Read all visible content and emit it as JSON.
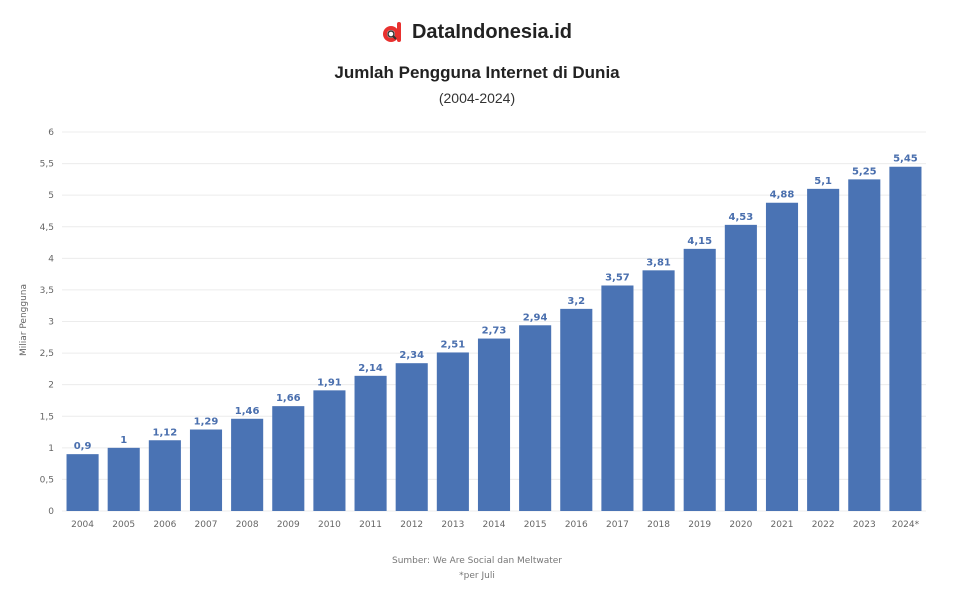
{
  "brand": {
    "name": "DataIndonesia.id",
    "logo_icon": "dataindonesia-logo-icon",
    "logo_color": "#e8312f"
  },
  "colors": {
    "bar": "#4a73b4",
    "data_label": "#4a6fae",
    "grid": "#ececec"
  },
  "chart_data": {
    "type": "bar",
    "title": "Jumlah Pengguna Internet di Dunia",
    "subtitle": "(2004-2024)",
    "ylabel": "Miliar Pengguna",
    "xlabel": "",
    "ylim": [
      0,
      6
    ],
    "yticks": [
      "0",
      "0,5",
      "1",
      "1,5",
      "2",
      "2,5",
      "3",
      "3,5",
      "4",
      "4,5",
      "5",
      "5,5",
      "6"
    ],
    "grid": true,
    "categories": [
      "2004",
      "2005",
      "2006",
      "2007",
      "2008",
      "2009",
      "2010",
      "2011",
      "2012",
      "2013",
      "2014",
      "2015",
      "2016",
      "2017",
      "2018",
      "2019",
      "2020",
      "2021",
      "2022",
      "2023",
      "2024*"
    ],
    "values": [
      0.9,
      1,
      1.12,
      1.29,
      1.46,
      1.66,
      1.91,
      2.14,
      2.34,
      2.51,
      2.73,
      2.94,
      3.2,
      3.57,
      3.81,
      4.15,
      4.53,
      4.88,
      5.1,
      5.25,
      5.45
    ],
    "labels": [
      "0,9",
      "1",
      "1,12",
      "1,29",
      "1,46",
      "1,66",
      "1,91",
      "2,14",
      "2,34",
      "2,51",
      "2,73",
      "2,94",
      "3,2",
      "3,57",
      "3,81",
      "4,15",
      "4,53",
      "4,88",
      "5,1",
      "5,25",
      "5,45"
    ]
  },
  "footer": {
    "source": "Sumber: We Are Social dan Meltwater",
    "note": "*per Juli"
  }
}
